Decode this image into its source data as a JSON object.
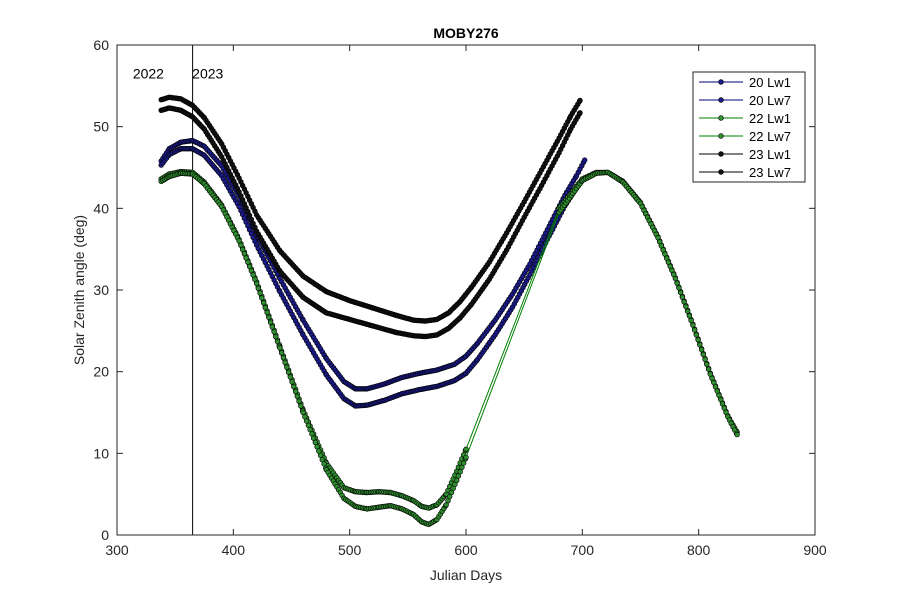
{
  "chart_data": {
    "type": "line",
    "title": "MOBY276",
    "xlabel": "Julian Days",
    "ylabel": "Solar Zenith angle (deg)",
    "xlim": [
      300,
      900
    ],
    "ylim": [
      0,
      60
    ],
    "xticks": [
      300,
      400,
      500,
      600,
      700,
      800,
      900
    ],
    "yticks": [
      0,
      10,
      20,
      30,
      40,
      50,
      60
    ],
    "grid": false,
    "legend_position": "top-right",
    "vline": {
      "x": 365
    },
    "annotations": [
      {
        "text": "2022",
        "x": 327,
        "y": 56.5
      },
      {
        "text": "2023",
        "x": 378,
        "y": 56.5
      }
    ],
    "series": [
      {
        "name": "20 Lw1",
        "color": "#00007f",
        "x": [
          338,
          345,
          355,
          365,
          375,
          390,
          405,
          420,
          440,
          460,
          480,
          495,
          505,
          515,
          530,
          545,
          560,
          575,
          590,
          600,
          610,
          625,
          640,
          655,
          670,
          685,
          695,
          702
        ],
        "y": [
          45.8,
          47.3,
          48.1,
          48.3,
          47.6,
          45.2,
          41.5,
          36.8,
          31.4,
          26.3,
          21.6,
          18.8,
          17.9,
          17.9,
          18.5,
          19.3,
          19.8,
          20.2,
          20.9,
          21.9,
          23.5,
          26.3,
          29.5,
          33.2,
          37.4,
          41.6,
          44.0,
          45.9
        ]
      },
      {
        "name": "20 Lw7",
        "color": "#00007f",
        "x": [
          338,
          345,
          355,
          365,
          375,
          390,
          405,
          420,
          440,
          460,
          480,
          495,
          505,
          515,
          530,
          545,
          560,
          575,
          590,
          600,
          610,
          625,
          640,
          655,
          670,
          685,
          695
        ],
        "y": [
          45.3,
          46.6,
          47.3,
          47.3,
          46.5,
          44.0,
          40.2,
          35.5,
          29.8,
          24.5,
          19.6,
          16.7,
          15.8,
          15.9,
          16.5,
          17.3,
          17.8,
          18.2,
          18.9,
          19.8,
          21.5,
          24.5,
          27.9,
          31.9,
          36.2,
          40.3,
          42.5
        ]
      },
      {
        "name": "22 Lw1",
        "color": "#007f00",
        "x": [
          338,
          345,
          355,
          365,
          375,
          390,
          405,
          420,
          440,
          460,
          480,
          495,
          505,
          515,
          525,
          535,
          545,
          555,
          562,
          568,
          575,
          583,
          592,
          600,
          680,
          700,
          712,
          722,
          735,
          750,
          765,
          780,
          795,
          810,
          825,
          833
        ],
        "y": [
          43.6,
          44.2,
          44.5,
          44.4,
          43.2,
          40.4,
          36.2,
          31.0,
          23.1,
          15.3,
          8.8,
          5.8,
          5.3,
          5.2,
          5.3,
          5.2,
          4.8,
          4.2,
          3.5,
          3.3,
          3.7,
          5.0,
          7.8,
          10.5,
          40.0,
          43.6,
          44.4,
          44.4,
          43.3,
          40.7,
          36.5,
          31.5,
          25.8,
          19.8,
          14.6,
          12.6
        ]
      },
      {
        "name": "22 Lw7",
        "color": "#007f00",
        "x": [
          338,
          345,
          355,
          365,
          375,
          390,
          405,
          420,
          440,
          460,
          480,
          495,
          505,
          515,
          525,
          535,
          545,
          555,
          562,
          568,
          575,
          583,
          592,
          600,
          680,
          700,
          712,
          722,
          735,
          750,
          765,
          780,
          795,
          810,
          825,
          833
        ],
        "y": [
          43.3,
          43.9,
          44.3,
          44.2,
          43.0,
          40.2,
          36.0,
          30.8,
          22.9,
          15.0,
          8.0,
          4.5,
          3.5,
          3.2,
          3.4,
          3.6,
          3.2,
          2.5,
          1.6,
          1.3,
          1.9,
          3.7,
          6.7,
          9.5,
          39.5,
          43.4,
          44.3,
          44.4,
          43.2,
          40.6,
          36.4,
          31.4,
          25.7,
          19.7,
          14.5,
          12.3
        ]
      },
      {
        "name": "23 Lw1",
        "color": "#000000",
        "x": [
          338,
          345,
          355,
          365,
          375,
          390,
          405,
          420,
          440,
          460,
          480,
          500,
          520,
          540,
          555,
          565,
          575,
          585,
          595,
          605,
          620,
          635,
          650,
          665,
          680,
          690,
          698
        ],
        "y": [
          53.3,
          53.6,
          53.4,
          52.6,
          51.1,
          47.9,
          43.7,
          39.2,
          34.8,
          31.7,
          29.8,
          28.7,
          27.8,
          26.9,
          26.3,
          26.2,
          26.4,
          27.2,
          28.6,
          30.4,
          33.4,
          37.0,
          40.8,
          44.7,
          48.6,
          51.3,
          53.2
        ]
      },
      {
        "name": "23 Lw7",
        "color": "#000000",
        "x": [
          338,
          345,
          355,
          365,
          375,
          390,
          405,
          420,
          440,
          460,
          480,
          500,
          520,
          540,
          555,
          565,
          575,
          585,
          595,
          605,
          620,
          635,
          650,
          665,
          680,
          690,
          698
        ],
        "y": [
          52.0,
          52.3,
          52.0,
          51.2,
          49.7,
          46.3,
          42.0,
          37.2,
          32.3,
          29.1,
          27.2,
          26.4,
          25.6,
          24.8,
          24.4,
          24.3,
          24.5,
          25.3,
          26.6,
          28.3,
          31.3,
          34.9,
          38.9,
          42.8,
          46.8,
          49.7,
          51.7
        ]
      }
    ]
  }
}
